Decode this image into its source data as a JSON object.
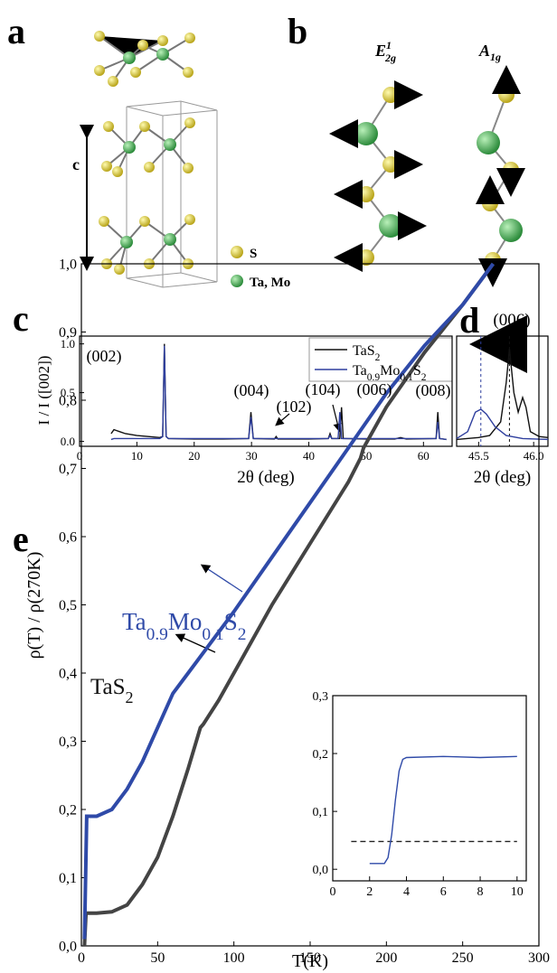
{
  "panels": {
    "a": {
      "label": "a",
      "axis_label": "c",
      "legend": [
        "S",
        "Ta, Mo"
      ]
    },
    "b": {
      "label": "b",
      "modes": [
        {
          "base": "E",
          "sup": "1",
          "sub": "2g"
        },
        {
          "base": "A",
          "sub": "1g"
        }
      ]
    },
    "c": {
      "label": "c"
    },
    "d": {
      "label": "d"
    },
    "e": {
      "label": "e"
    }
  },
  "chart_data": [
    {
      "type": "line",
      "xlabel": "2θ (deg)",
      "ylabel": "I / I ([002])",
      "xlim": [
        0,
        65
      ],
      "ylim": [
        -0.05,
        1.08
      ],
      "xticks": [
        0,
        10,
        20,
        30,
        40,
        50,
        60
      ],
      "yticks": [
        {
          "value": 0,
          "label": "0.0"
        },
        {
          "value": 0.5,
          "label": "0.5"
        },
        {
          "value": 1,
          "label": "1.0"
        }
      ],
      "annotations": [
        "(002)",
        "(004)",
        "(102)",
        "(104)",
        "(006)",
        "(008)"
      ],
      "series": [
        {
          "name": "TaS2",
          "color": "#111111",
          "x": [
            5.5,
            6,
            7,
            8,
            10,
            12,
            14,
            14.5,
            14.8,
            15.1,
            15.5,
            20,
            25,
            29.5,
            29.9,
            30.3,
            34,
            34.3,
            34.6,
            40,
            43.4,
            43.7,
            44,
            45.4,
            45.7,
            46,
            50,
            55,
            56,
            57,
            62.2,
            62.5,
            62.8,
            64
          ],
          "values": [
            0.08,
            0.12,
            0.1,
            0.08,
            0.06,
            0.05,
            0.04,
            0.05,
            1.0,
            0.05,
            0.03,
            0.025,
            0.025,
            0.03,
            0.3,
            0.03,
            0.025,
            0.05,
            0.025,
            0.025,
            0.03,
            0.08,
            0.03,
            0.03,
            0.35,
            0.03,
            0.025,
            0.025,
            0.04,
            0.025,
            0.03,
            0.3,
            0.03,
            0.02
          ]
        },
        {
          "name": "Ta0.9Mo0.1S2",
          "color": "#2f3f9e",
          "x": [
            5.5,
            6,
            10,
            14,
            14.5,
            14.8,
            15.1,
            15.5,
            20,
            29.5,
            29.9,
            30.3,
            40,
            43.4,
            43.7,
            44,
            45.1,
            45.4,
            45.7,
            50,
            62.2,
            62.5,
            62.8,
            64
          ],
          "values": [
            0.02,
            0.03,
            0.03,
            0.03,
            0.05,
            0.98,
            0.05,
            0.03,
            0.03,
            0.03,
            0.25,
            0.03,
            0.03,
            0.03,
            0.06,
            0.03,
            0.03,
            0.3,
            0.03,
            0.03,
            0.03,
            0.2,
            0.03,
            0.02
          ]
        }
      ]
    },
    {
      "type": "line",
      "title": "(006)",
      "xlabel": "2θ (deg)",
      "xlim": [
        45.3,
        46.13
      ],
      "ylim": [
        -0.05,
        1.08
      ],
      "xticks": [
        45.5,
        {
          "value": 46,
          "label": "46.0"
        }
      ],
      "markers": [
        {
          "x": 45.52,
          "color": "#2f3f9e"
        },
        {
          "x": 45.78,
          "color": "#111111"
        }
      ],
      "series": [
        {
          "name": "TaS2",
          "color": "#111111",
          "x": [
            45.3,
            45.5,
            45.6,
            45.7,
            45.75,
            45.78,
            45.82,
            45.86,
            45.9,
            45.93,
            45.97,
            46.05,
            46.13
          ],
          "values": [
            0.02,
            0.04,
            0.06,
            0.2,
            0.6,
            0.95,
            0.5,
            0.3,
            0.45,
            0.35,
            0.1,
            0.05,
            0.04
          ]
        },
        {
          "name": "Ta0.9Mo0.1S2",
          "color": "#2f3f9e",
          "x": [
            45.3,
            45.4,
            45.47,
            45.52,
            45.57,
            45.65,
            45.75,
            45.9,
            46.13
          ],
          "values": [
            0.03,
            0.1,
            0.3,
            0.33,
            0.28,
            0.15,
            0.06,
            0.03,
            0.02
          ]
        }
      ]
    },
    {
      "type": "line",
      "xlabel": "T(K)",
      "ylabel": "ρ(T) / ρ(270K)",
      "xlim": [
        0,
        300
      ],
      "ylim": [
        0,
        1
      ],
      "xticks": [
        0,
        50,
        100,
        150,
        200,
        250,
        300
      ],
      "yticks": [
        {
          "value": 0,
          "label": "0,0"
        },
        {
          "value": 0.1,
          "label": "0,1"
        },
        {
          "value": 0.2,
          "label": "0,2"
        },
        {
          "value": 0.3,
          "label": "0,3"
        },
        {
          "value": 0.4,
          "label": "0,4"
        },
        {
          "value": 0.5,
          "label": "0,5"
        },
        {
          "value": 0.6,
          "label": "0,6"
        },
        {
          "value": 0.7,
          "label": "0,7"
        },
        {
          "value": 0.8,
          "label": "0,8"
        },
        {
          "value": 0.9,
          "label": "0,9"
        },
        {
          "value": 1,
          "label": "1,0"
        }
      ],
      "annotations": [
        "Ta0.9Mo0.1S2",
        "TaS2"
      ],
      "series": [
        {
          "name": "TaS2",
          "color": "#444444",
          "x": [
            2,
            3,
            10,
            20,
            30,
            40,
            50,
            60,
            70,
            78,
            80,
            90,
            100,
            125,
            150,
            175,
            183,
            185,
            200,
            225,
            250,
            270
          ],
          "values": [
            0.0,
            0.048,
            0.048,
            0.05,
            0.06,
            0.09,
            0.13,
            0.19,
            0.26,
            0.32,
            0.325,
            0.36,
            0.4,
            0.5,
            0.59,
            0.68,
            0.715,
            0.73,
            0.79,
            0.87,
            0.94,
            1.0
          ]
        },
        {
          "name": "Ta0.9Mo0.1S2",
          "color": "#2f4aa8",
          "x": [
            2,
            3.5,
            10,
            20,
            30,
            40,
            50,
            60,
            70,
            80,
            100,
            125,
            150,
            175,
            200,
            225,
            250,
            270
          ],
          "values": [
            0.01,
            0.19,
            0.19,
            0.2,
            0.23,
            0.27,
            0.32,
            0.37,
            0.4,
            0.43,
            0.49,
            0.57,
            0.65,
            0.73,
            0.81,
            0.88,
            0.94,
            1.0
          ]
        }
      ]
    },
    {
      "type": "line",
      "xlim": [
        0,
        10.5
      ],
      "ylim": [
        -0.02,
        0.3
      ],
      "xticks": [
        0,
        2,
        4,
        6,
        8,
        10
      ],
      "yticks": [
        {
          "value": 0,
          "label": "0,0"
        },
        {
          "value": 0.1,
          "label": "0,1"
        },
        {
          "value": 0.2,
          "label": "0,2"
        },
        {
          "value": 0.3,
          "label": "0,3"
        }
      ],
      "series": [
        {
          "name": "TaS2",
          "color": "#222222",
          "dash": true,
          "x": [
            1,
            10
          ],
          "values": [
            0.048,
            0.048
          ]
        },
        {
          "name": "Ta0.9Mo0.1S2",
          "color": "#2f4aa8",
          "x": [
            2,
            2.8,
            3.0,
            3.2,
            3.4,
            3.6,
            3.8,
            4,
            6,
            8,
            10
          ],
          "values": [
            0.01,
            0.01,
            0.02,
            0.06,
            0.12,
            0.17,
            0.19,
            0.193,
            0.195,
            0.193,
            0.195
          ]
        }
      ]
    }
  ]
}
